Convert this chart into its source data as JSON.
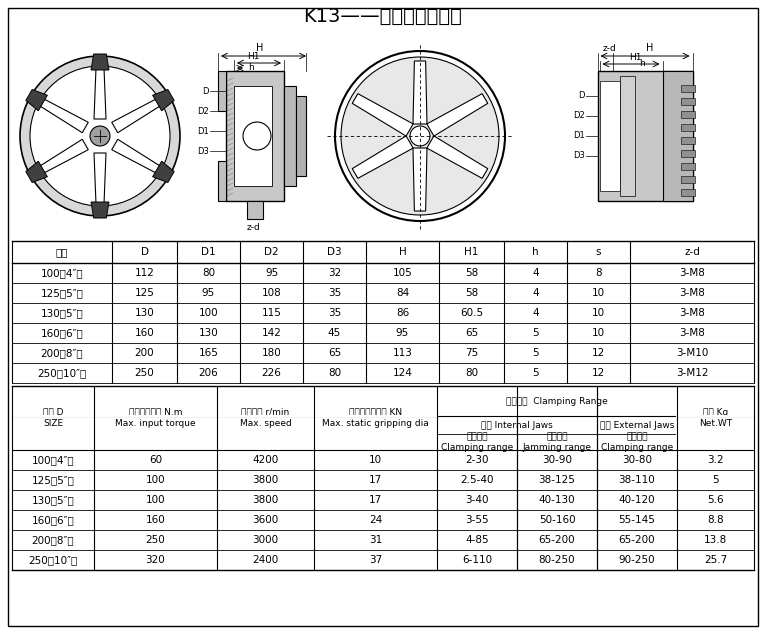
{
  "title": "K13——六爪自定心卡盘",
  "title_ascii": "K13---六爪自定心卡盘",
  "table1_headers": [
    "规格",
    "D",
    "D1",
    "D2",
    "D3",
    "H",
    "H1",
    "h",
    "s",
    "z-d"
  ],
  "table1_rows": [
    [
      "100（4″）",
      "112",
      "80",
      "95",
      "32",
      "105",
      "58",
      "4",
      "8",
      "3-M8"
    ],
    [
      "125（5″）",
      "125",
      "95",
      "108",
      "35",
      "84",
      "58",
      "4",
      "10",
      "3-M8"
    ],
    [
      "130（5″）",
      "130",
      "100",
      "115",
      "35",
      "86",
      "60.5",
      "4",
      "10",
      "3-M8"
    ],
    [
      "160（6″）",
      "160",
      "130",
      "142",
      "45",
      "95",
      "65",
      "5",
      "10",
      "3-M8"
    ],
    [
      "200（8″）",
      "200",
      "165",
      "180",
      "65",
      "113",
      "75",
      "5",
      "12",
      "3-M10"
    ],
    [
      "250（10″）",
      "250",
      "206",
      "226",
      "80",
      "124",
      "80",
      "5",
      "12",
      "3-M12"
    ]
  ],
  "table2_rows": [
    [
      "100（4″）",
      "60",
      "4200",
      "10",
      "2-30",
      "30-90",
      "30-80",
      "3.2"
    ],
    [
      "125（5″）",
      "100",
      "3800",
      "17",
      "2.5-40",
      "38-125",
      "38-110",
      "5"
    ],
    [
      "130（5″）",
      "100",
      "3800",
      "17",
      "3-40",
      "40-130",
      "40-120",
      "5.6"
    ],
    [
      "160（6″）",
      "160",
      "3600",
      "24",
      "3-55",
      "50-160",
      "55-145",
      "8.8"
    ],
    [
      "200（8″）",
      "250",
      "3000",
      "31",
      "4-85",
      "65-200",
      "65-200",
      "13.8"
    ],
    [
      "250（10″）",
      "320",
      "2400",
      "37",
      "6-110",
      "80-250",
      "90-250",
      "25.7"
    ]
  ],
  "bg_color": "#ffffff",
  "text_color": "#000000"
}
